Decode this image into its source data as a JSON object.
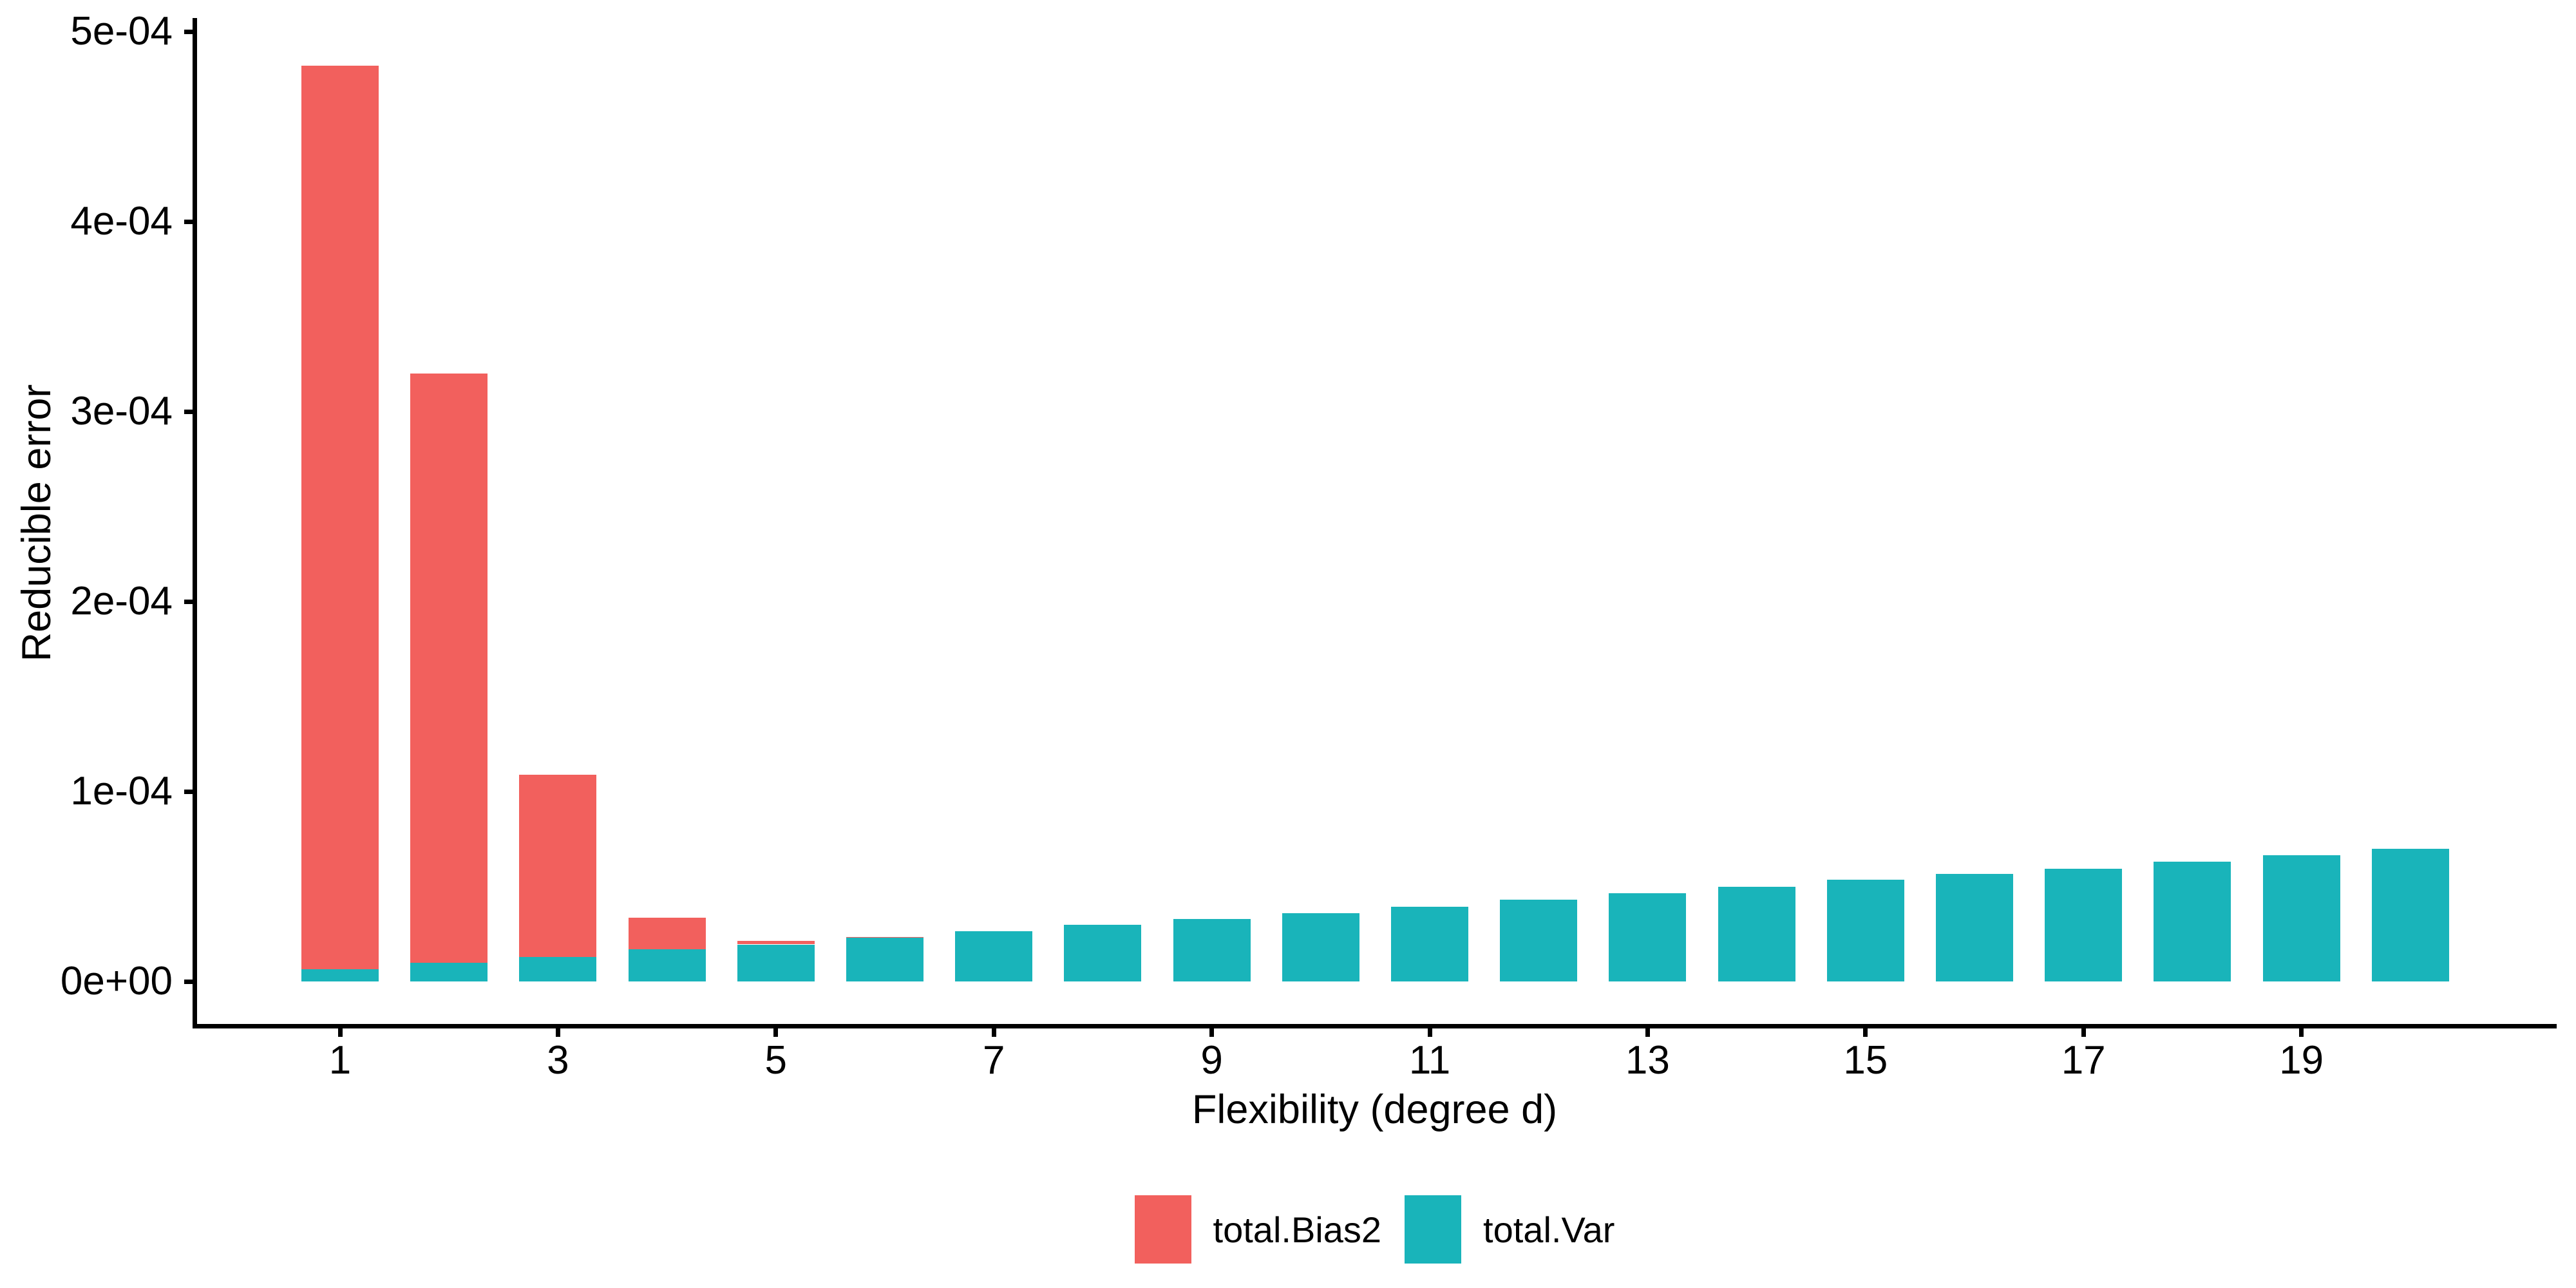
{
  "chart_data": {
    "type": "bar",
    "stacked": true,
    "title": "",
    "xlabel": "Flexibility (degree d)",
    "ylabel": "Reducible error",
    "categories": [
      1,
      2,
      3,
      4,
      5,
      6,
      7,
      8,
      9,
      10,
      11,
      12,
      13,
      14,
      15,
      16,
      17,
      18,
      19,
      20
    ],
    "series": [
      {
        "name": "total.Bias2",
        "color": "#F2605D",
        "values": [
          0.0004755,
          0.00031,
          9.6e-05,
          1.65e-05,
          2e-06,
          5e-07,
          0,
          0,
          0,
          0,
          0,
          0,
          0,
          0,
          0,
          0,
          0,
          0,
          0,
          0
        ]
      },
      {
        "name": "total.Var",
        "color": "#19B4BA",
        "values": [
          6.5e-06,
          1e-05,
          1.3e-05,
          1.7e-05,
          1.95e-05,
          2.3e-05,
          2.65e-05,
          3e-05,
          3.3e-05,
          3.6e-05,
          3.95e-05,
          4.3e-05,
          4.65e-05,
          5e-05,
          5.35e-05,
          5.65e-05,
          5.95e-05,
          6.3e-05,
          6.65e-05,
          7e-05
        ]
      }
    ],
    "stack_order_bottom_to_top": [
      "total.Var",
      "total.Bias2"
    ],
    "x_ticks": {
      "positions": [
        1,
        3,
        5,
        7,
        9,
        11,
        13,
        15,
        17,
        19
      ],
      "labels": [
        "1",
        "3",
        "5",
        "7",
        "9",
        "11",
        "13",
        "15",
        "17",
        "19"
      ]
    },
    "y_ticks": {
      "values": [
        0,
        0.0001,
        0.0002,
        0.0003,
        0.0004,
        0.0005
      ],
      "labels": [
        "0e+00",
        "1e-04",
        "2e-04",
        "3e-04",
        "4e-04",
        "5e-04"
      ]
    },
    "ylim": [
      0,
      0.000506
    ],
    "grid": false,
    "legend_position": "bottom",
    "axis_color": "#000000",
    "background": "#FFFFFF"
  },
  "legend": {
    "items": [
      {
        "label": "total.Bias2",
        "color": "#F2605D"
      },
      {
        "label": "total.Var",
        "color": "#19B4BA"
      }
    ]
  }
}
